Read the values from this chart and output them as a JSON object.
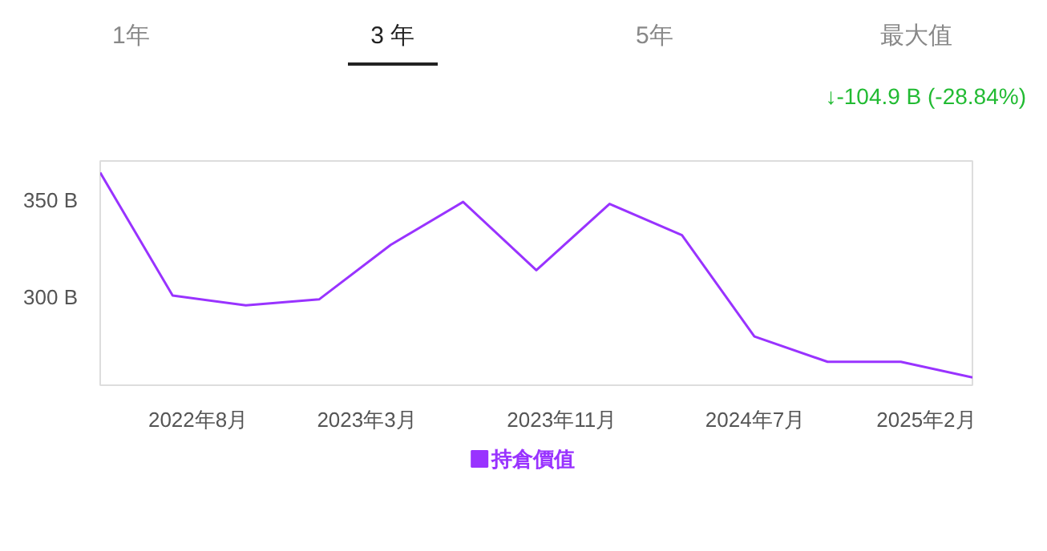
{
  "chart_data": {
    "type": "line",
    "annotations": [
      "1年",
      "3 年",
      "5年",
      "最大值",
      "↓-104.9 B (-28.84%)"
    ],
    "x": [
      "2022-03-31",
      "2022-06-30",
      "2022-09-30",
      "2022-12-31",
      "2023-03-31",
      "2023-06-30",
      "2023-09-30",
      "2023-12-31",
      "2024-03-31",
      "2024-06-30",
      "2024-09-30",
      "2024-12-31",
      "2025-03-31"
    ],
    "series": [
      {
        "name": "持倉價值",
        "color": "#9933ff",
        "values": [
          364,
          301,
          296,
          299,
          327,
          349,
          314,
          348,
          332,
          280,
          267,
          267,
          259
        ]
      }
    ],
    "xticks": [
      {
        "value": "2022-08-01",
        "label": "2022年8月"
      },
      {
        "value": "2023-03-01",
        "label": "2023年3月"
      },
      {
        "value": "2023-11-01",
        "label": "2023年11月"
      },
      {
        "value": "2024-07-01",
        "label": "2024年7月"
      },
      {
        "value": "2025-02-01",
        "label": "2025年2月"
      }
    ],
    "xlim": [
      "2022-03-31",
      "2025-03-31"
    ],
    "ylim": [
      255,
      370
    ],
    "yticks": [
      {
        "value": 300,
        "label": "300 B"
      },
      {
        "value": 350,
        "label": "350 B"
      }
    ],
    "grid": false,
    "legend": "bottom",
    "marker": "none",
    "line_style": "solid"
  }
}
